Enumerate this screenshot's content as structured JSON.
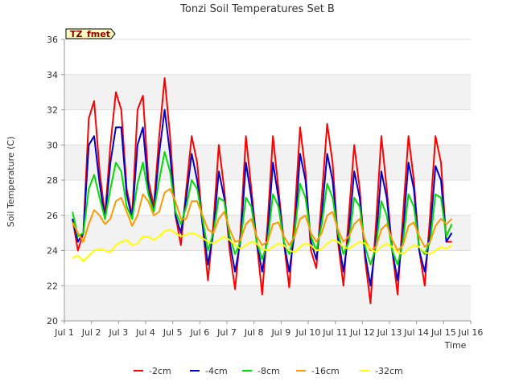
{
  "chart_data": {
    "type": "line",
    "title": "Tonzi Soil Temperatures Set B",
    "xlabel": "Time",
    "ylabel": "Soil Temperature (C)",
    "badge": "TZ_fmet",
    "x_tick_labels": [
      "Jul 1",
      "Jul 2",
      "Jul 3",
      "Jul 4",
      "Jul 5",
      "Jul 6",
      "Jul 7",
      "Jul 8",
      "Jul 9",
      "Jul 10",
      "Jul 11",
      "Jul 12",
      "Jul 13",
      "Jul 14",
      "Jul 15",
      "Jul 16"
    ],
    "xlim": [
      1,
      16
    ],
    "ylim": [
      20,
      36
    ],
    "y_ticks": [
      20,
      22,
      24,
      26,
      28,
      30,
      32,
      34,
      36
    ],
    "grid": "horizontal",
    "legend_position": "bottom",
    "x": [
      1.3,
      1.5,
      1.7,
      1.9,
      2.1,
      2.3,
      2.5,
      2.7,
      2.9,
      3.1,
      3.3,
      3.5,
      3.7,
      3.9,
      4.1,
      4.3,
      4.5,
      4.7,
      4.9,
      5.1,
      5.3,
      5.5,
      5.7,
      5.9,
      6.1,
      6.3,
      6.5,
      6.7,
      6.9,
      7.1,
      7.3,
      7.5,
      7.7,
      7.9,
      8.1,
      8.3,
      8.5,
      8.7,
      8.9,
      9.1,
      9.3,
      9.5,
      9.7,
      9.9,
      10.1,
      10.3,
      10.5,
      10.7,
      10.9,
      11.1,
      11.3,
      11.5,
      11.7,
      11.9,
      12.1,
      12.3,
      12.5,
      12.7,
      12.9,
      13.1,
      13.3,
      13.5,
      13.7,
      13.9,
      14.1,
      14.3,
      14.5,
      14.7,
      14.9,
      15.1,
      15.3
    ],
    "series": [
      {
        "name": "-2cm",
        "color": "#ff0000",
        "values": [
          25.8,
          24.0,
          25.0,
          31.5,
          32.5,
          28.5,
          26.0,
          30.0,
          33.0,
          32.0,
          27.5,
          26.0,
          32.0,
          32.8,
          28.0,
          26.5,
          30.5,
          33.8,
          30.5,
          26.0,
          24.3,
          27.5,
          30.5,
          29.0,
          25.5,
          22.3,
          25.5,
          30.0,
          27.5,
          24.0,
          21.8,
          25.0,
          30.5,
          27.5,
          24.5,
          21.5,
          25.5,
          30.5,
          27.5,
          24.5,
          21.9,
          26.0,
          31.0,
          28.5,
          24.0,
          23.0,
          27.0,
          31.2,
          29.0,
          24.5,
          22.0,
          26.0,
          30.0,
          27.5,
          23.5,
          21.0,
          25.5,
          30.5,
          27.5,
          24.0,
          21.5,
          26.0,
          30.5,
          28.0,
          24.0,
          22.0,
          26.0,
          30.5,
          29.0,
          24.5,
          24.5
        ]
      },
      {
        "name": "-4cm",
        "color": "#0000cc",
        "values": [
          25.8,
          24.5,
          25.0,
          30.0,
          30.5,
          27.8,
          25.8,
          29.0,
          31.0,
          31.0,
          27.2,
          25.8,
          30.0,
          31.0,
          27.5,
          26.2,
          29.5,
          32.0,
          29.5,
          26.0,
          25.0,
          27.0,
          29.5,
          28.0,
          25.5,
          23.2,
          25.0,
          28.5,
          27.0,
          24.5,
          22.8,
          24.5,
          29.0,
          27.0,
          24.5,
          22.8,
          24.8,
          29.0,
          27.0,
          24.5,
          22.8,
          25.0,
          29.5,
          28.0,
          24.5,
          23.5,
          26.0,
          29.5,
          28.0,
          24.8,
          22.8,
          25.0,
          28.5,
          27.0,
          23.8,
          22.0,
          24.5,
          28.5,
          27.0,
          24.0,
          22.3,
          25.0,
          29.0,
          27.5,
          24.0,
          22.8,
          25.0,
          28.8,
          28.0,
          24.5,
          25.0
        ]
      },
      {
        "name": "-8cm",
        "color": "#00dd00",
        "values": [
          26.2,
          24.8,
          25.0,
          27.5,
          28.3,
          27.0,
          25.8,
          27.5,
          29.0,
          28.5,
          26.5,
          25.8,
          27.8,
          29.0,
          27.2,
          26.2,
          28.0,
          29.6,
          28.5,
          26.2,
          25.5,
          26.5,
          28.0,
          27.5,
          25.8,
          24.0,
          25.0,
          27.0,
          26.8,
          24.8,
          23.8,
          24.5,
          27.0,
          26.5,
          24.5,
          23.5,
          24.5,
          27.2,
          26.5,
          24.5,
          23.8,
          25.0,
          27.8,
          27.0,
          24.8,
          24.0,
          25.5,
          27.8,
          27.0,
          25.0,
          23.8,
          24.5,
          27.0,
          26.5,
          24.2,
          23.2,
          24.2,
          26.8,
          26.0,
          24.0,
          23.2,
          24.5,
          27.2,
          26.5,
          24.2,
          23.8,
          24.5,
          27.2,
          27.0,
          24.8,
          25.5
        ]
      },
      {
        "name": "-16cm",
        "color": "#ff9900",
        "values": [
          25.6,
          25.0,
          24.5,
          25.5,
          26.3,
          26.0,
          25.5,
          25.8,
          26.8,
          27.0,
          26.2,
          25.4,
          26.0,
          27.2,
          26.8,
          26.0,
          26.2,
          27.3,
          27.5,
          26.8,
          25.8,
          25.8,
          26.8,
          26.8,
          26.0,
          25.2,
          25.0,
          25.8,
          26.2,
          25.2,
          24.5,
          24.6,
          25.5,
          25.8,
          24.8,
          24.3,
          24.5,
          25.5,
          25.6,
          24.8,
          24.3,
          24.8,
          25.8,
          26.0,
          25.0,
          24.5,
          25.0,
          26.0,
          26.2,
          25.2,
          24.5,
          24.8,
          25.5,
          25.8,
          24.6,
          24.0,
          24.2,
          25.2,
          25.5,
          24.6,
          24.0,
          24.3,
          25.4,
          25.6,
          24.8,
          24.2,
          24.5,
          25.4,
          25.8,
          25.5,
          25.8
        ]
      },
      {
        "name": "-32cm",
        "color": "#ffff00",
        "values": [
          23.6,
          23.7,
          23.4,
          23.7,
          24.0,
          24.1,
          24.0,
          23.9,
          24.3,
          24.5,
          24.6,
          24.3,
          24.4,
          24.8,
          24.8,
          24.6,
          24.8,
          25.1,
          25.2,
          25.0,
          24.8,
          24.9,
          25.0,
          24.9,
          24.7,
          24.5,
          24.4,
          24.6,
          24.8,
          24.6,
          24.3,
          24.1,
          24.3,
          24.5,
          24.4,
          24.1,
          24.0,
          24.2,
          24.4,
          24.3,
          24.0,
          23.9,
          24.2,
          24.4,
          24.3,
          24.0,
          24.1,
          24.4,
          24.6,
          24.5,
          24.2,
          24.1,
          24.3,
          24.5,
          24.4,
          24.1,
          23.9,
          24.2,
          24.4,
          24.2,
          23.9,
          23.8,
          24.1,
          24.3,
          24.2,
          23.9,
          23.8,
          24.0,
          24.2,
          24.1,
          24.3
        ]
      }
    ]
  }
}
